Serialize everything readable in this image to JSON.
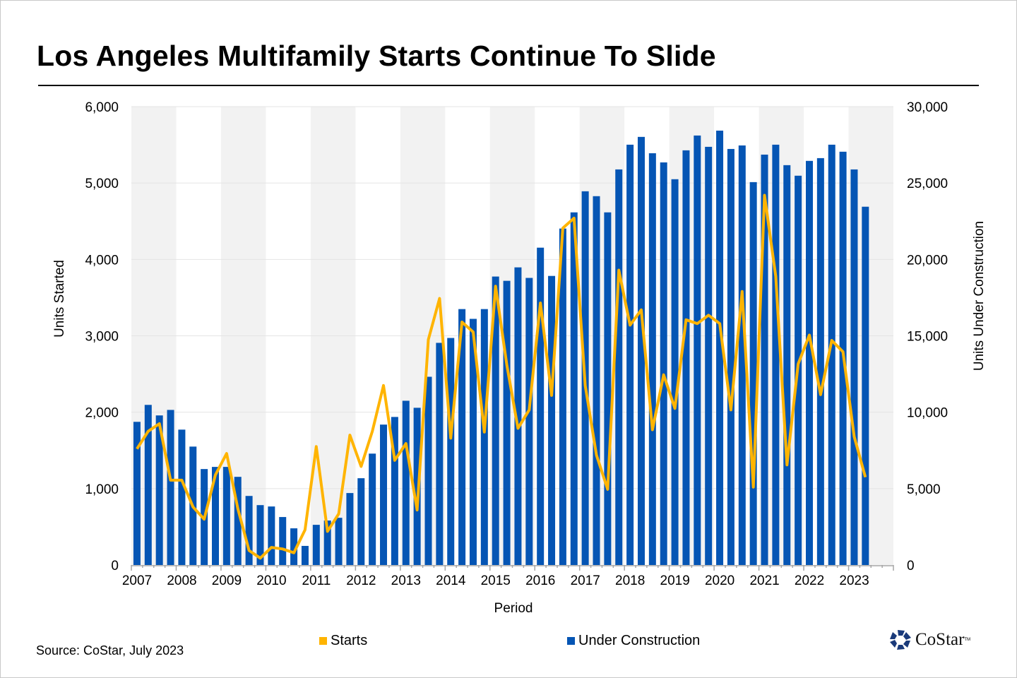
{
  "title": "Los Angeles Multifamily Starts Continue To Slide",
  "source": "Source: CoStar, July 2023",
  "logo_text": "CoStar",
  "colors": {
    "starts": "#FFB400",
    "under_construction": "#0555B4",
    "band": "#F2F2F2"
  },
  "chart_data": {
    "type": "bar+line",
    "title": "Los Angeles Multifamily Starts Continue To Slide",
    "xlabel": "Period",
    "ylabel_left": "Units Started",
    "ylabel_right": "Units Under Construction",
    "ylim_left": [
      0,
      6000
    ],
    "ylim_right": [
      0,
      30000
    ],
    "yticks_left": [
      "0",
      "1,000",
      "2,000",
      "3,000",
      "4,000",
      "5,000",
      "6,000"
    ],
    "yticks_right": [
      "0",
      "5,000",
      "10,000",
      "15,000",
      "20,000",
      "25,000",
      "30,000"
    ],
    "xticks": [
      "2007",
      "2008",
      "2009",
      "2010",
      "2011",
      "2012",
      "2013",
      "2014",
      "2015",
      "2016",
      "2017",
      "2018",
      "2019",
      "2020",
      "2021",
      "2022",
      "2023"
    ],
    "x_frequency": "quarterly, 2007 Q1 to 2023 Q2",
    "grid": true,
    "legend_placement": "bottom",
    "series": [
      {
        "name": "Starts",
        "type": "line",
        "axis": "left",
        "values": [
          1520,
          1750,
          1850,
          1110,
          1110,
          760,
          600,
          1180,
          1460,
          740,
          190,
          90,
          230,
          210,
          160,
          460,
          1550,
          440,
          670,
          1700,
          1290,
          1750,
          2350,
          1370,
          1590,
          720,
          2950,
          3490,
          1660,
          3180,
          3050,
          1740,
          3650,
          2620,
          1790,
          2030,
          3430,
          2220,
          4410,
          4540,
          2350,
          1440,
          990,
          3860,
          3140,
          3340,
          1770,
          2490,
          2050,
          3210,
          3160,
          3270,
          3160,
          2030,
          3580,
          1020,
          4840,
          3780,
          1310,
          2630,
          3010,
          2230,
          2940,
          2790,
          1680,
          1150
        ]
      },
      {
        "name": "Under Construction",
        "type": "bar",
        "axis": "right",
        "values": [
          9370,
          10480,
          9790,
          10150,
          8860,
          7750,
          6280,
          6420,
          6420,
          5770,
          4520,
          3920,
          3830,
          3140,
          2400,
          1250,
          2630,
          2910,
          3090,
          4710,
          5680,
          7290,
          9190,
          9690,
          10750,
          10290,
          12320,
          14540,
          14860,
          16750,
          16110,
          16750,
          18880,
          18600,
          19480,
          18790,
          20770,
          18920,
          22020,
          23080,
          24460,
          24140,
          23080,
          25890,
          27510,
          28020,
          26950,
          26350,
          25250,
          27140,
          28110,
          27370,
          28430,
          27230,
          27460,
          25060,
          26860,
          27510,
          26170,
          25480,
          26450,
          26630,
          27510,
          27050,
          25890,
          23450
        ]
      }
    ]
  }
}
